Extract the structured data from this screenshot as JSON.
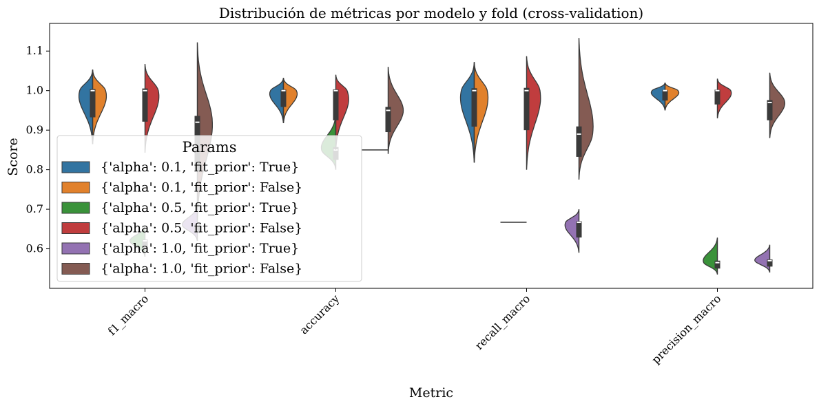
{
  "chart_data": {
    "type": "violin",
    "title": "Distribución de métricas por modelo y fold (cross-validation)",
    "xlabel": "Metric",
    "ylabel": "Score",
    "ylim": [
      0.5,
      1.17
    ],
    "yticks": [
      0.6,
      0.7,
      0.8,
      0.9,
      1.0,
      1.1
    ],
    "ytick_labels": [
      "0.6",
      "0.7",
      "0.8",
      "0.9",
      "1.0",
      "1.1"
    ],
    "categories": [
      "f1_macro",
      "accuracy",
      "recall_macro",
      "precision_macro"
    ],
    "grid": false,
    "legend": {
      "title": "Params",
      "position": "center-left",
      "entries": [
        "{'alpha': 0.1, 'fit_prior': True}",
        "{'alpha': 0.1, 'fit_prior': False}",
        "{'alpha': 0.5, 'fit_prior': True}",
        "{'alpha': 0.5, 'fit_prior': False}",
        "{'alpha': 1.0, 'fit_prior': True}",
        "{'alpha': 1.0, 'fit_prior': False}"
      ]
    },
    "colors": [
      "#3274a1",
      "#e1812c",
      "#3a923a",
      "#c03d3e",
      "#9372b2",
      "#845b53"
    ],
    "series": [
      {
        "name": "{'alpha': 0.1, 'fit_prior': True}",
        "side": "left",
        "slot": 0,
        "stats": [
          {
            "min": 0.865,
            "max": 1.053,
            "median": 1.0
          },
          {
            "min": 0.918,
            "max": 1.032,
            "median": 1.0
          },
          {
            "min": 0.818,
            "max": 1.072,
            "median": 1.0
          },
          {
            "min": 0.95,
            "max": 1.02,
            "median": 1.0
          }
        ]
      },
      {
        "name": "{'alpha': 0.1, 'fit_prior': False}",
        "side": "right",
        "slot": 0,
        "stats": [
          {
            "min": 0.865,
            "max": 1.053,
            "median": 1.0
          },
          {
            "min": 0.918,
            "max": 1.032,
            "median": 1.0
          },
          {
            "min": 0.818,
            "max": 1.072,
            "median": 1.0
          },
          {
            "min": 0.95,
            "max": 1.02,
            "median": 1.0
          }
        ]
      },
      {
        "name": "{'alpha': 0.5, 'fit_prior': True}",
        "side": "left",
        "slot": 1,
        "stats": [
          {
            "min": 0.58,
            "max": 0.66,
            "median": 0.62
          },
          {
            "min": 0.8,
            "max": 0.94,
            "median": 0.85
          },
          {
            "min": 0.667,
            "max": 0.667,
            "median": 0.667
          },
          {
            "min": 0.535,
            "max": 0.628,
            "median": 0.565
          }
        ]
      },
      {
        "name": "{'alpha': 0.5, 'fit_prior': False}",
        "side": "right",
        "slot": 1,
        "stats": [
          {
            "min": 0.843,
            "max": 1.067,
            "median": 1.0
          },
          {
            "min": 0.85,
            "max": 1.04,
            "median": 1.0
          },
          {
            "min": 0.8,
            "max": 1.087,
            "median": 1.0
          },
          {
            "min": 0.93,
            "max": 1.03,
            "median": 1.0
          }
        ]
      },
      {
        "name": "{'alpha': 1.0, 'fit_prior': True}",
        "side": "left",
        "slot": 2,
        "stats": [
          {
            "min": 0.62,
            "max": 0.71,
            "median": 0.66
          },
          {
            "min": 0.85,
            "max": 0.85,
            "median": 0.85
          },
          {
            "min": 0.59,
            "max": 0.7,
            "median": 0.667
          },
          {
            "min": 0.54,
            "max": 0.61,
            "median": 0.57
          }
        ]
      },
      {
        "name": "{'alpha': 1.0, 'fit_prior': False}",
        "side": "right",
        "slot": 2,
        "stats": [
          {
            "min": 0.67,
            "max": 1.122,
            "median": 0.92
          },
          {
            "min": 0.84,
            "max": 1.06,
            "median": 0.95
          },
          {
            "min": 0.775,
            "max": 1.133,
            "median": 0.89
          },
          {
            "min": 0.88,
            "max": 1.045,
            "median": 0.97
          }
        ]
      }
    ]
  }
}
